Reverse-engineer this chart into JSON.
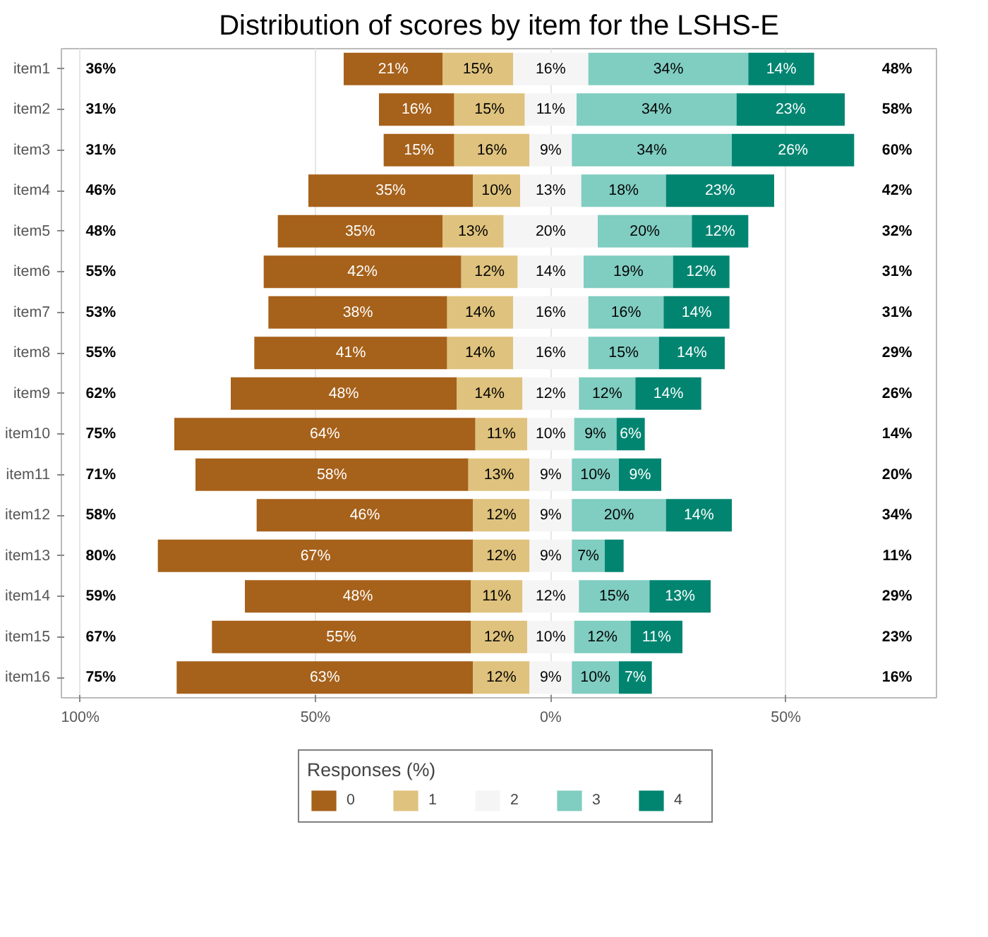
{
  "chart_data": {
    "type": "bar",
    "orientation": "horizontal",
    "title": "Distribution of scores by item for the LSHS-E",
    "legend_title": "Responses (%)",
    "legend": "bottom",
    "grid": "x",
    "categories": [
      "item1",
      "item2",
      "item3",
      "item4",
      "item5",
      "item6",
      "item7",
      "item8",
      "item9",
      "item10",
      "item11",
      "item12",
      "item13",
      "item14",
      "item15",
      "item16"
    ],
    "xlim": [
      -104,
      82
    ],
    "xticks": [
      {
        "value": -100,
        "label": "100%"
      },
      {
        "value": -50,
        "label": "50%"
      },
      {
        "value": 0,
        "label": "0%"
      },
      {
        "value": 50,
        "label": "50%"
      }
    ],
    "series": [
      {
        "name": "0",
        "color": "#a6611a",
        "base": [
          -44,
          -36.5,
          -35.5,
          -51.5,
          -58,
          -61,
          -60,
          -63,
          -68,
          -80,
          -75.5,
          -62.5,
          -83.5,
          -65,
          -72,
          -79.5
        ],
        "values": [
          21,
          16,
          15,
          35,
          35,
          42,
          38,
          41,
          48,
          64,
          58,
          46,
          67,
          48,
          55,
          63
        ],
        "value_labels": [
          "21%",
          "16%",
          "15%",
          "35%",
          "35%",
          "42%",
          "38%",
          "41%",
          "48%",
          "64%",
          "58%",
          "46%",
          "67%",
          "48%",
          "55%",
          "63%"
        ]
      },
      {
        "name": "1",
        "color": "#dfc27d",
        "base": [
          -23,
          -20.5,
          -20.5,
          -16.5,
          -23,
          -19,
          -22,
          -22,
          -20,
          -16,
          -17.5,
          -16.5,
          -16.5,
          -17,
          -17,
          -16.5
        ],
        "values": [
          15,
          15,
          16,
          10,
          13,
          12,
          14,
          14,
          14,
          11,
          13,
          12,
          12,
          11,
          12,
          12
        ],
        "value_labels": [
          "15%",
          "15%",
          "16%",
          "10%",
          "13%",
          "12%",
          "14%",
          "14%",
          "14%",
          "11%",
          "13%",
          "12%",
          "12%",
          "11%",
          "12%",
          "12%"
        ]
      },
      {
        "name": "2",
        "color": "#f5f5f5",
        "base": [
          -8,
          -5.5,
          -4.5,
          -6.5,
          -10,
          -7,
          -8,
          -8,
          -6,
          -5,
          -4.5,
          -4.5,
          -4.5,
          -6,
          -5,
          -4.5
        ],
        "values": [
          16,
          11,
          9,
          13,
          20,
          14,
          16,
          16,
          12,
          10,
          9,
          9,
          9,
          12,
          10,
          9
        ],
        "value_labels": [
          "16%",
          "11%",
          "9%",
          "13%",
          "20%",
          "14%",
          "16%",
          "16%",
          "12%",
          "10%",
          "9%",
          "9%",
          "9%",
          "12%",
          "10%",
          "9%"
        ]
      },
      {
        "name": "3",
        "color": "#80cdc1",
        "base": [
          8,
          5.5,
          4.5,
          6.5,
          10,
          7,
          8,
          8,
          6,
          5,
          4.5,
          4.5,
          4.5,
          6,
          5,
          4.5
        ],
        "values": [
          34,
          34,
          34,
          18,
          20,
          19,
          16,
          15,
          12,
          9,
          10,
          20,
          7,
          15,
          12,
          10
        ],
        "value_labels": [
          "34%",
          "34%",
          "34%",
          "18%",
          "20%",
          "19%",
          "16%",
          "15%",
          "12%",
          "9%",
          "10%",
          "20%",
          "7%",
          "15%",
          "12%",
          "10%"
        ]
      },
      {
        "name": "4",
        "color": "#018571",
        "base": [
          42,
          39.5,
          38.5,
          24.5,
          30,
          26,
          24,
          23,
          18,
          14,
          14.5,
          24.5,
          11.5,
          21,
          17,
          14.5
        ],
        "values": [
          14,
          23,
          26,
          23,
          12,
          12,
          14,
          14,
          14,
          6,
          9,
          14,
          4,
          13,
          11,
          7
        ],
        "value_labels": [
          "14%",
          "23%",
          "26%",
          "23%",
          "12%",
          "12%",
          "14%",
          "14%",
          "14%",
          "6%",
          "9%",
          "14%",
          null,
          "13%",
          "11%",
          "7%"
        ]
      }
    ],
    "annotations": [
      "36%",
      "31%",
      "31%",
      "46%",
      "48%",
      "55%",
      "53%",
      "55%",
      "62%",
      "75%",
      "71%",
      "58%",
      "80%",
      "59%",
      "67%",
      "75%",
      "48%",
      "58%",
      "60%",
      "42%",
      "32%",
      "31%",
      "31%",
      "29%",
      "26%",
      "14%",
      "20%",
      "34%",
      "11%",
      "29%",
      "23%",
      "16%"
    ]
  }
}
